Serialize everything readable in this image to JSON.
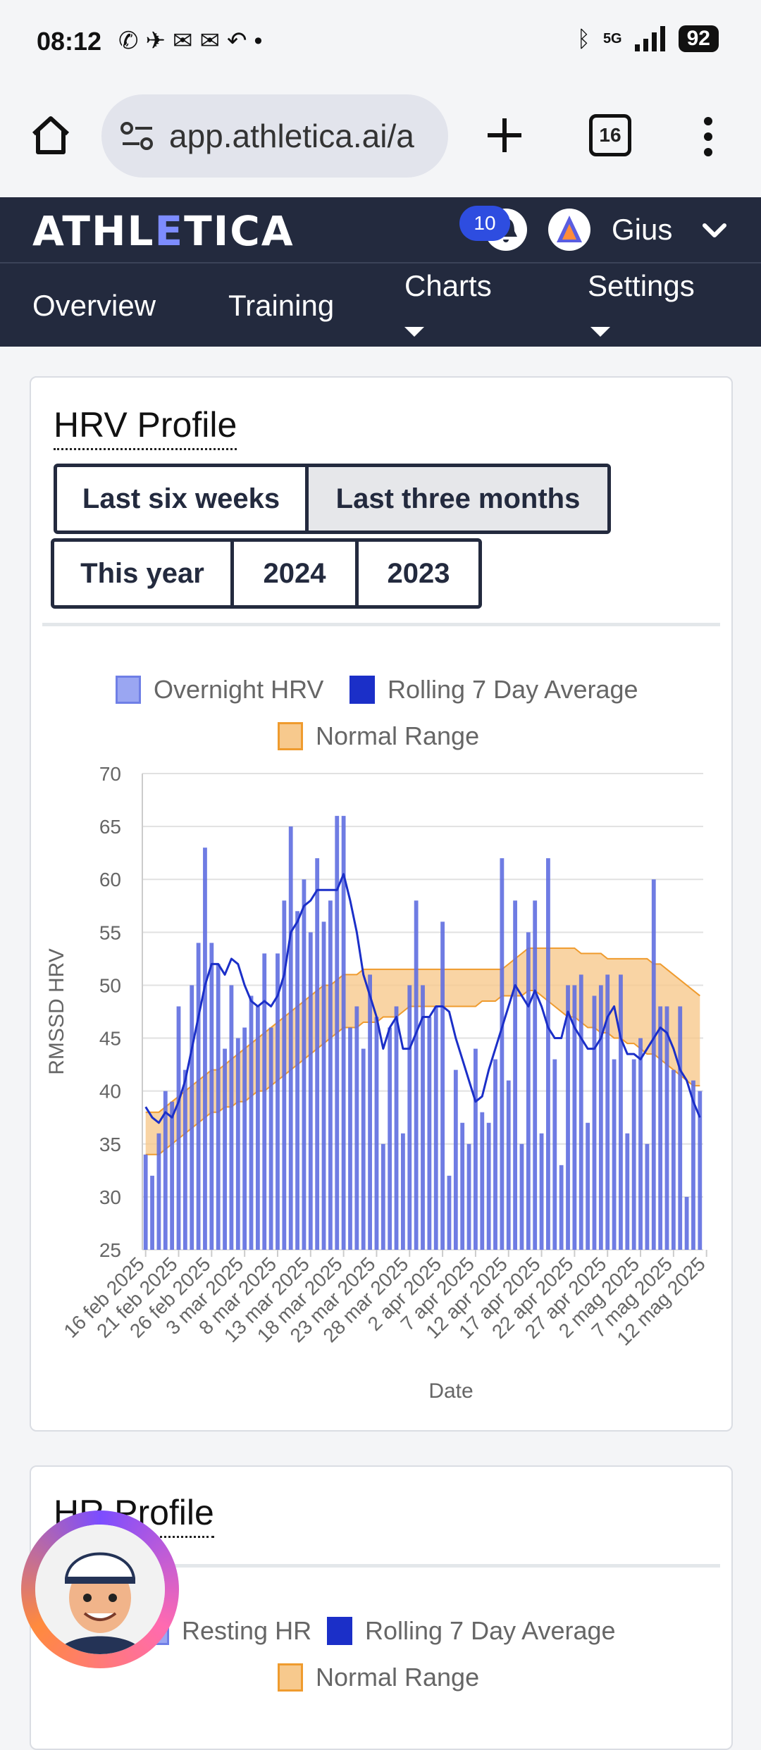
{
  "status_bar": {
    "time": "08:12",
    "battery": "92",
    "network": "5G"
  },
  "browser": {
    "url": "app.athletica.ai/a",
    "tab_count": "16"
  },
  "app": {
    "logo_pre": "ATHL",
    "logo_accent": "E",
    "logo_post": "TICA",
    "notification_count": "10",
    "user_name": "Gius"
  },
  "nav": {
    "overview": "Overview",
    "training": "Training",
    "charts": "Charts",
    "settings": "Settings"
  },
  "hrv_card": {
    "title": "HRV Profile",
    "ranges": [
      "Last six weeks",
      "Last three months",
      "This year",
      "2024",
      "2023"
    ],
    "active_range": "Last three months"
  },
  "hr_card": {
    "title": "HR Profile",
    "legend": [
      "Resting HR",
      "Rolling 7 Day Average",
      "Normal Range"
    ]
  },
  "colors": {
    "header_bg": "#232a3e",
    "bar": "#5f6ee0",
    "line": "#1b2fc8",
    "range_fill": "#f7c98d",
    "range_stroke": "#ef9b2e"
  },
  "chart_data": {
    "type": "bar",
    "title": "",
    "xlabel": "Date",
    "ylabel": "RMSSD HRV",
    "ylim": [
      25,
      70
    ],
    "yticks": [
      25,
      30,
      35,
      40,
      45,
      50,
      55,
      60,
      65,
      70
    ],
    "xtick_labels": [
      "16 feb 2025",
      "21 feb 2025",
      "26 feb 2025",
      "3 mar 2025",
      "8 mar 2025",
      "13 mar 2025",
      "18 mar 2025",
      "23 mar 2025",
      "28 mar 2025",
      "2 apr 2025",
      "7 apr 2025",
      "12 apr 2025",
      "17 apr 2025",
      "22 apr 2025",
      "27 apr 2025",
      "2 mag 2025",
      "7 mag 2025",
      "12 mag 2025"
    ],
    "legend": [
      "Overnight HRV",
      "Rolling 7 Day Average",
      "Normal Range"
    ],
    "grid": true,
    "legend_position": "top",
    "series": [
      {
        "name": "Overnight HRV",
        "type": "bar",
        "values": [
          34,
          32,
          36,
          40,
          39,
          48,
          42,
          50,
          54,
          63,
          54,
          52,
          44,
          50,
          45,
          46,
          49,
          48,
          53,
          46,
          53,
          58,
          65,
          57,
          60,
          55,
          62,
          56,
          58,
          66,
          66,
          46,
          48,
          44,
          51,
          47,
          35,
          46,
          48,
          36,
          50,
          58,
          50,
          47,
          48,
          56,
          32,
          42,
          37,
          35,
          44,
          38,
          37,
          43,
          62,
          41,
          58,
          35,
          55,
          58,
          36,
          62,
          43,
          33,
          50,
          50,
          51,
          37,
          49,
          50,
          51,
          43,
          51,
          36,
          43,
          45,
          35,
          60,
          48,
          48,
          42,
          48,
          30,
          41,
          40
        ]
      },
      {
        "name": "Rolling 7 Day Average",
        "type": "line",
        "values": [
          38.5,
          37.5,
          37,
          38,
          37.5,
          39,
          41,
          44,
          47,
          50,
          52,
          52,
          51,
          52.5,
          52,
          50,
          48.5,
          48,
          48.5,
          48,
          49,
          51,
          55,
          56,
          57.5,
          58,
          59,
          59,
          59,
          59,
          60.5,
          58,
          55,
          51,
          49,
          47,
          44,
          46,
          47,
          44,
          44,
          45.5,
          47,
          47,
          48,
          48,
          47.5,
          45,
          43,
          41,
          39,
          39.5,
          42,
          44,
          46,
          48,
          50,
          49,
          48,
          49.5,
          48,
          46,
          45,
          45,
          47.5,
          46,
          45,
          44,
          44,
          45,
          47,
          48,
          45,
          43.5,
          43.5,
          43,
          44,
          45,
          46,
          45.5,
          44,
          42,
          41,
          39,
          37.5
        ]
      },
      {
        "name": "Normal Range",
        "type": "area",
        "lower": [
          34,
          34,
          34,
          34.5,
          35,
          35.5,
          36,
          36.5,
          37,
          37.5,
          38,
          38,
          38.5,
          38.5,
          39,
          39,
          39.5,
          40,
          40,
          40.5,
          41,
          41.5,
          42,
          42.5,
          43,
          43.5,
          44,
          44.5,
          45,
          45.5,
          46,
          46,
          46,
          46.5,
          46.5,
          46.5,
          47,
          47,
          47,
          47.5,
          48,
          48,
          48,
          48,
          48,
          48,
          48,
          48,
          48,
          48,
          48,
          48.5,
          48.5,
          48.5,
          49,
          49,
          49,
          49,
          49.5,
          49.5,
          49,
          48.5,
          48,
          47.5,
          47,
          47,
          46.5,
          46,
          46,
          45.5,
          45.5,
          45,
          45,
          44.5,
          44.5,
          44,
          43.5,
          43.5,
          43,
          42.5,
          42,
          41.5,
          41,
          40.5,
          40.5
        ],
        "upper": [
          38,
          38,
          38,
          38.5,
          39,
          39.5,
          40,
          40.5,
          41,
          41.5,
          42,
          42,
          42.5,
          43,
          43.5,
          44,
          44.5,
          45,
          45.5,
          46,
          46.5,
          47,
          47.5,
          48,
          48.5,
          49,
          49.5,
          50,
          50,
          50.5,
          51,
          51,
          51,
          51.5,
          51.5,
          51.5,
          51.5,
          51.5,
          51.5,
          51.5,
          51.5,
          51.5,
          51.5,
          51.5,
          51.5,
          51.5,
          51.5,
          51.5,
          51.5,
          51.5,
          51.5,
          51.5,
          51.5,
          51.5,
          51.5,
          52,
          52.5,
          53,
          53.5,
          53.5,
          53.5,
          53.5,
          53.5,
          53.5,
          53.5,
          53.5,
          53,
          53,
          53,
          53,
          52.5,
          52.5,
          52.5,
          52.5,
          52.5,
          52.5,
          52.5,
          52,
          52,
          51.5,
          51,
          50.5,
          50,
          49.5,
          49
        ]
      }
    ]
  }
}
